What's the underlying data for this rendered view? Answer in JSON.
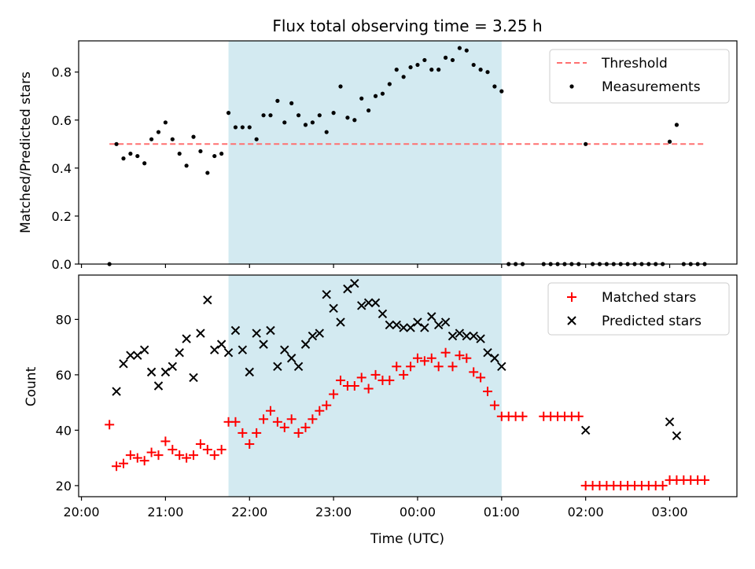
{
  "chart_data": [
    {
      "type": "scatter",
      "title": "Flux total observing time = 3.25 h",
      "xlabel": "",
      "ylabel": "Matched/Predicted stars",
      "ylim": [
        0,
        0.93
      ],
      "yticks": [
        0.0,
        0.2,
        0.4,
        0.6,
        0.8
      ],
      "ytick_labels": [
        "0.0",
        "0.2",
        "0.4",
        "0.6",
        "0.8"
      ],
      "legend_position": "top-right",
      "shaded_interval": {
        "start": "21:45",
        "end": "01:00",
        "color": "#d3eaf1"
      },
      "colors": {
        "threshold": "#ff7070",
        "measurements": "#000000"
      },
      "series": [
        {
          "name": "Threshold",
          "kind": "dashed-line",
          "x": [
            "20:20",
            "03:25"
          ],
          "y": [
            0.5,
            0.5
          ]
        },
        {
          "name": "Measurements",
          "kind": "points",
          "x": [
            "20:20",
            "20:25",
            "20:30",
            "20:35",
            "20:40",
            "20:45",
            "20:50",
            "20:55",
            "21:00",
            "21:05",
            "21:10",
            "21:15",
            "21:20",
            "21:25",
            "21:30",
            "21:35",
            "21:40",
            "21:45",
            "21:50",
            "21:55",
            "22:00",
            "22:05",
            "22:10",
            "22:15",
            "22:20",
            "22:25",
            "22:30",
            "22:35",
            "22:40",
            "22:45",
            "22:50",
            "22:55",
            "23:00",
            "23:05",
            "23:10",
            "23:15",
            "23:20",
            "23:25",
            "23:30",
            "23:35",
            "23:40",
            "23:45",
            "23:50",
            "23:55",
            "00:00",
            "00:05",
            "00:10",
            "00:15",
            "00:20",
            "00:25",
            "00:30",
            "00:35",
            "00:40",
            "00:45",
            "00:50",
            "00:55",
            "01:00",
            "01:05",
            "01:10",
            "01:15",
            "01:30",
            "01:35",
            "01:40",
            "01:45",
            "01:50",
            "01:55",
            "02:00",
            "02:05",
            "02:10",
            "02:15",
            "02:20",
            "02:25",
            "02:30",
            "02:35",
            "02:40",
            "02:45",
            "02:50",
            "02:55",
            "03:00",
            "03:05",
            "03:10",
            "03:15",
            "03:20",
            "03:25"
          ],
          "y": [
            0.0,
            0.5,
            0.44,
            0.46,
            0.45,
            0.42,
            0.52,
            0.55,
            0.59,
            0.52,
            0.46,
            0.41,
            0.53,
            0.47,
            0.38,
            0.45,
            0.46,
            0.63,
            0.57,
            0.57,
            0.57,
            0.52,
            0.62,
            0.62,
            0.68,
            0.59,
            0.67,
            0.62,
            0.58,
            0.59,
            0.62,
            0.55,
            0.63,
            0.74,
            0.61,
            0.6,
            0.69,
            0.64,
            0.7,
            0.71,
            0.75,
            0.81,
            0.78,
            0.82,
            0.83,
            0.85,
            0.81,
            0.81,
            0.86,
            0.85,
            0.9,
            0.89,
            0.83,
            0.81,
            0.8,
            0.74,
            0.72,
            0.0,
            0.0,
            0.0,
            0.0,
            0.0,
            0.0,
            0.0,
            0.0,
            0.0,
            0.5,
            0.0,
            0.0,
            0.0,
            0.0,
            0.0,
            0.0,
            0.0,
            0.0,
            0.0,
            0.0,
            0.0,
            0.51,
            0.58,
            0.0,
            0.0,
            0.0,
            0.0
          ]
        }
      ]
    },
    {
      "type": "scatter",
      "title": "",
      "xlabel": "Time (UTC)",
      "ylabel": "Count",
      "ylim": [
        16,
        96
      ],
      "yticks": [
        20,
        40,
        60,
        80
      ],
      "ytick_labels": [
        "20",
        "40",
        "60",
        "80"
      ],
      "xlim": [
        "19:58",
        "03:48"
      ],
      "xticks": [
        "20:00",
        "21:00",
        "22:00",
        "23:00",
        "00:00",
        "01:00",
        "02:00",
        "03:00"
      ],
      "xtick_labels": [
        "20:00",
        "21:00",
        "22:00",
        "23:00",
        "00:00",
        "01:00",
        "02:00",
        "03:00"
      ],
      "legend_position": "top-right",
      "shaded_interval": {
        "start": "21:45",
        "end": "01:00",
        "color": "#d3eaf1"
      },
      "colors": {
        "matched": "#ff0000",
        "predicted": "#000000"
      },
      "series": [
        {
          "name": "Matched stars",
          "marker": "plus",
          "x": [
            "20:20",
            "20:25",
            "20:30",
            "20:35",
            "20:40",
            "20:45",
            "20:50",
            "20:55",
            "21:00",
            "21:05",
            "21:10",
            "21:15",
            "21:20",
            "21:25",
            "21:30",
            "21:35",
            "21:40",
            "21:45",
            "21:50",
            "21:55",
            "22:00",
            "22:05",
            "22:10",
            "22:15",
            "22:20",
            "22:25",
            "22:30",
            "22:35",
            "22:40",
            "22:45",
            "22:50",
            "22:55",
            "23:00",
            "23:05",
            "23:10",
            "23:15",
            "23:20",
            "23:25",
            "23:30",
            "23:35",
            "23:40",
            "23:45",
            "23:50",
            "23:55",
            "00:00",
            "00:05",
            "00:10",
            "00:15",
            "00:20",
            "00:25",
            "00:30",
            "00:35",
            "00:40",
            "00:45",
            "00:50",
            "00:55",
            "01:00",
            "01:05",
            "01:10",
            "01:15",
            "01:30",
            "01:35",
            "01:40",
            "01:45",
            "01:50",
            "01:55",
            "02:00",
            "02:05",
            "02:10",
            "02:15",
            "02:20",
            "02:25",
            "02:30",
            "02:35",
            "02:40",
            "02:45",
            "02:50",
            "02:55",
            "03:00",
            "03:05",
            "03:10",
            "03:15",
            "03:20",
            "03:25"
          ],
          "y": [
            42,
            27,
            28,
            31,
            30,
            29,
            32,
            31,
            36,
            33,
            31,
            30,
            31,
            35,
            33,
            31,
            33,
            43,
            43,
            39,
            35,
            39,
            44,
            47,
            43,
            41,
            44,
            39,
            41,
            44,
            47,
            49,
            53,
            58,
            56,
            56,
            59,
            55,
            60,
            58,
            58,
            63,
            60,
            63,
            66,
            65,
            66,
            63,
            68,
            63,
            67,
            66,
            61,
            59,
            54,
            49,
            45,
            45,
            45,
            45,
            45,
            45,
            45,
            45,
            45,
            45,
            20,
            20,
            20,
            20,
            20,
            20,
            20,
            20,
            20,
            20,
            20,
            20,
            22,
            22,
            22,
            22,
            22,
            22
          ]
        },
        {
          "name": "Predicted stars",
          "marker": "x",
          "x": [
            "20:25",
            "20:30",
            "20:35",
            "20:40",
            "20:45",
            "20:50",
            "20:55",
            "21:00",
            "21:05",
            "21:10",
            "21:15",
            "21:20",
            "21:25",
            "21:30",
            "21:35",
            "21:40",
            "21:45",
            "21:50",
            "21:55",
            "22:00",
            "22:05",
            "22:10",
            "22:15",
            "22:20",
            "22:25",
            "22:30",
            "22:35",
            "22:40",
            "22:45",
            "22:50",
            "22:55",
            "23:00",
            "23:05",
            "23:10",
            "23:15",
            "23:20",
            "23:25",
            "23:30",
            "23:35",
            "23:40",
            "23:45",
            "23:50",
            "23:55",
            "00:00",
            "00:05",
            "00:10",
            "00:15",
            "00:20",
            "00:25",
            "00:30",
            "00:35",
            "00:40",
            "00:45",
            "00:50",
            "00:55",
            "01:00",
            "02:00",
            "03:00",
            "03:05"
          ],
          "y": [
            54,
            64,
            67,
            67,
            69,
            61,
            56,
            61,
            63,
            68,
            73,
            59,
            75,
            87,
            69,
            71,
            68,
            76,
            69,
            61,
            75,
            71,
            76,
            63,
            69,
            66,
            63,
            71,
            74,
            75,
            89,
            84,
            79,
            91,
            93,
            85,
            86,
            86,
            82,
            78,
            78,
            77,
            77,
            79,
            77,
            81,
            78,
            79,
            74,
            75,
            74,
            74,
            73,
            68,
            66,
            63,
            40,
            43,
            38
          ]
        }
      ]
    }
  ]
}
